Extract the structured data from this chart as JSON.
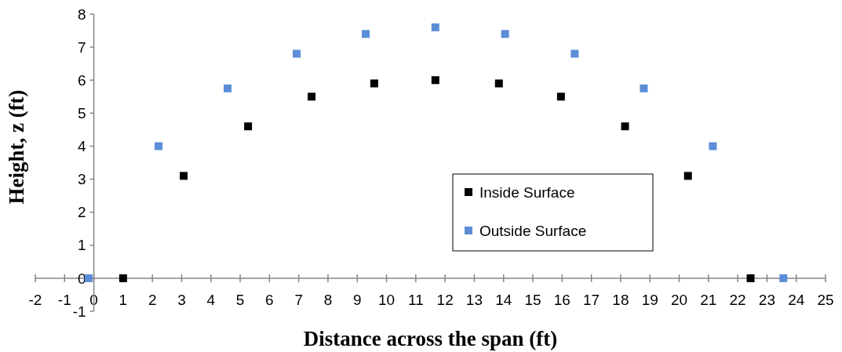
{
  "chart_data": {
    "type": "scatter",
    "xlabel": "Distance across the span (ft)",
    "ylabel": "Height, z (ft)",
    "xlim": [
      -2,
      25
    ],
    "ylim": [
      -1,
      8
    ],
    "xticks": [
      -2,
      -1,
      0,
      1,
      2,
      3,
      4,
      5,
      6,
      7,
      8,
      9,
      10,
      11,
      12,
      13,
      14,
      15,
      16,
      17,
      18,
      19,
      20,
      21,
      22,
      23,
      24,
      25
    ],
    "yticks": [
      -1,
      0,
      1,
      2,
      3,
      4,
      5,
      6,
      7,
      8
    ],
    "marker": "square",
    "grid": false,
    "legend": "right",
    "series": [
      {
        "name": "Inside Surface",
        "color": "#000000",
        "x": [
          1.0,
          3.07,
          5.27,
          7.44,
          9.58,
          11.67,
          13.84,
          15.96,
          18.15,
          20.3,
          22.44
        ],
        "values": [
          0,
          3.1,
          4.6,
          5.5,
          5.9,
          6.0,
          5.9,
          5.5,
          4.6,
          3.1,
          0
        ]
      },
      {
        "name": "Outside Surface",
        "color": "#5b8ed6",
        "x": [
          -0.18,
          2.21,
          4.57,
          6.93,
          9.29,
          11.67,
          14.05,
          16.43,
          18.79,
          21.15,
          23.56
        ],
        "values": [
          0,
          4.0,
          5.75,
          6.8,
          7.4,
          7.6,
          7.4,
          6.8,
          5.75,
          4.0,
          0
        ]
      }
    ]
  }
}
